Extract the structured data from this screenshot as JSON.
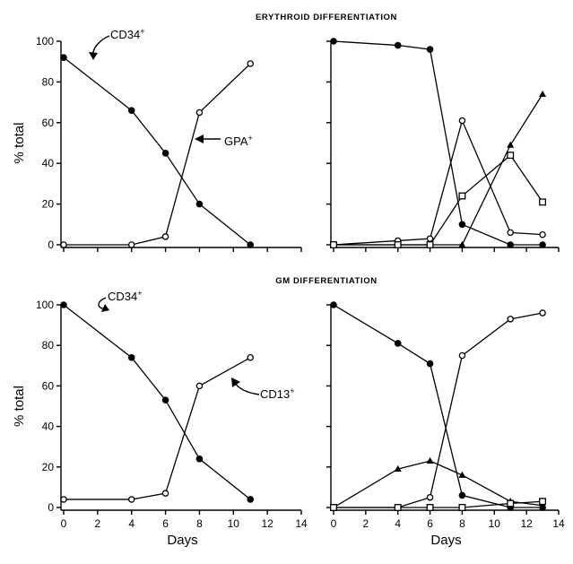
{
  "titles": {
    "erythroid": "ERYTHROID DIFFERENTIATION",
    "gm": "GM DIFFERENTIATION"
  },
  "ylabel": "% total",
  "xlabel": "Days",
  "annotations": {
    "cd34_top": {
      "base": "CD34",
      "sup": "+"
    },
    "gpa": {
      "base": "GPA",
      "sup": "+"
    },
    "cd34_bottom": {
      "base": "CD34",
      "sup": "+"
    },
    "cd13": {
      "base": "CD13",
      "sup": "+"
    }
  },
  "chart_data": [
    {
      "id": "ery_left",
      "type": "line",
      "xlim": [
        0,
        14
      ],
      "ylim": [
        0,
        100
      ],
      "xticks": [
        0,
        2,
        4,
        6,
        8,
        10,
        12,
        14
      ],
      "yticks": [
        0,
        20,
        40,
        60,
        80,
        100
      ],
      "show_yticklabels": true,
      "show_ylabel": true,
      "show_xlabel": false,
      "show_xticks": false,
      "series": [
        {
          "name": "CD34+",
          "marker": "filled-circle",
          "x": [
            0,
            4,
            6,
            8,
            11
          ],
          "y": [
            92,
            66,
            45,
            20,
            0
          ]
        },
        {
          "name": "GPA+",
          "marker": "open-circle",
          "x": [
            0,
            4,
            6,
            8,
            11
          ],
          "y": [
            0,
            0,
            4,
            65,
            89
          ]
        }
      ]
    },
    {
      "id": "ery_right",
      "type": "line",
      "xlim": [
        0,
        14
      ],
      "ylim": [
        0,
        100
      ],
      "xticks": [
        0,
        2,
        4,
        6,
        8,
        10,
        12,
        14
      ],
      "yticks": [
        0,
        20,
        40,
        60,
        80,
        100
      ],
      "show_yticklabels": false,
      "show_ylabel": false,
      "show_xlabel": false,
      "show_xticks": false,
      "series": [
        {
          "marker": "filled-circle",
          "x": [
            0,
            4,
            6,
            8,
            11,
            13
          ],
          "y": [
            100,
            98,
            96,
            10,
            0,
            0
          ]
        },
        {
          "marker": "open-circle",
          "x": [
            0,
            4,
            6,
            8,
            11,
            13
          ],
          "y": [
            0,
            2,
            3,
            61,
            6,
            5
          ]
        },
        {
          "marker": "filled-triangle",
          "x": [
            0,
            4,
            6,
            8,
            11,
            13
          ],
          "y": [
            0,
            0,
            0,
            0,
            49,
            74
          ]
        },
        {
          "marker": "open-square",
          "x": [
            0,
            4,
            6,
            8,
            11,
            13
          ],
          "y": [
            0,
            0,
            0,
            24,
            44,
            21
          ]
        }
      ]
    },
    {
      "id": "gm_left",
      "type": "line",
      "xlim": [
        0,
        14
      ],
      "ylim": [
        0,
        100
      ],
      "xticks": [
        0,
        2,
        4,
        6,
        8,
        10,
        12,
        14
      ],
      "yticks": [
        0,
        20,
        40,
        60,
        80,
        100
      ],
      "show_yticklabels": true,
      "show_ylabel": true,
      "show_xlabel": true,
      "show_xticks": true,
      "series": [
        {
          "name": "CD34+",
          "marker": "filled-circle",
          "x": [
            0,
            4,
            6,
            8,
            11
          ],
          "y": [
            100,
            74,
            53,
            24,
            4
          ]
        },
        {
          "name": "CD13+",
          "marker": "open-circle",
          "x": [
            0,
            4,
            6,
            8,
            11
          ],
          "y": [
            4,
            4,
            7,
            60,
            74
          ]
        }
      ]
    },
    {
      "id": "gm_right",
      "type": "line",
      "xlim": [
        0,
        14
      ],
      "ylim": [
        0,
        100
      ],
      "xticks": [
        0,
        2,
        4,
        6,
        8,
        10,
        12,
        14
      ],
      "yticks": [
        0,
        20,
        40,
        60,
        80,
        100
      ],
      "show_yticklabels": false,
      "show_ylabel": false,
      "show_xlabel": true,
      "show_xticks": true,
      "series": [
        {
          "marker": "filled-circle",
          "x": [
            0,
            4,
            6,
            8,
            11,
            13
          ],
          "y": [
            100,
            81,
            71,
            6,
            0,
            0
          ]
        },
        {
          "marker": "open-circle",
          "x": [
            0,
            4,
            6,
            8,
            11,
            13
          ],
          "y": [
            0,
            0,
            5,
            75,
            93,
            96
          ]
        },
        {
          "marker": "filled-triangle",
          "x": [
            0,
            4,
            6,
            8,
            11,
            13
          ],
          "y": [
            0,
            19,
            23,
            16,
            3,
            1
          ]
        },
        {
          "marker": "open-square",
          "x": [
            0,
            4,
            6,
            8,
            11,
            13
          ],
          "y": [
            0,
            0,
            0,
            0,
            2,
            3
          ]
        }
      ]
    }
  ]
}
